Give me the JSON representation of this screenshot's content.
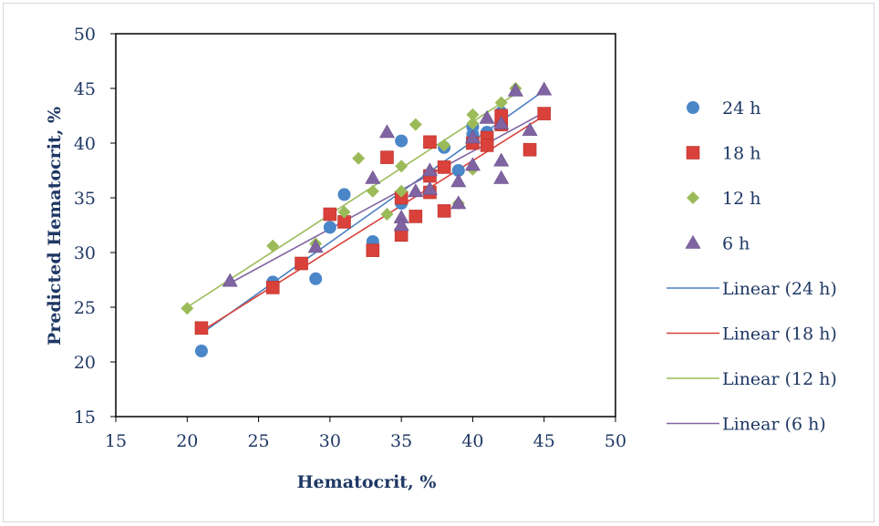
{
  "chart_data": {
    "type": "scatter",
    "xlabel": "Hematocrit, %",
    "ylabel": "Predicted Hematocrit, %",
    "xlim": [
      15,
      50
    ],
    "ylim": [
      15,
      50
    ],
    "xticks": [
      15,
      20,
      25,
      30,
      35,
      40,
      45,
      50
    ],
    "yticks": [
      15,
      20,
      25,
      30,
      35,
      40,
      45,
      50
    ],
    "grid": false,
    "legend_position": "right",
    "series": [
      {
        "name": "24 h",
        "marker": "circle",
        "color": "#4a86c8",
        "points": [
          [
            21,
            21
          ],
          [
            26,
            27.3
          ],
          [
            29,
            27.6
          ],
          [
            30,
            32.3
          ],
          [
            31,
            35.3
          ],
          [
            33,
            31
          ],
          [
            35,
            40.2
          ],
          [
            35,
            34.5
          ],
          [
            38,
            39.6
          ],
          [
            39,
            37.5
          ],
          [
            40,
            41.5
          ],
          [
            40,
            40.8
          ],
          [
            41,
            41
          ],
          [
            42,
            42.8
          ]
        ]
      },
      {
        "name": "18 h",
        "marker": "square",
        "color": "#d9413a",
        "points": [
          [
            21,
            23.1
          ],
          [
            26,
            26.8
          ],
          [
            28,
            29
          ],
          [
            30,
            33.5
          ],
          [
            31,
            32.8
          ],
          [
            33,
            30.2
          ],
          [
            34,
            38.7
          ],
          [
            35,
            31.6
          ],
          [
            35,
            35
          ],
          [
            36,
            33.3
          ],
          [
            37,
            40.1
          ],
          [
            37,
            37
          ],
          [
            37,
            35.5
          ],
          [
            38,
            33.8
          ],
          [
            38,
            37.8
          ],
          [
            40,
            40
          ],
          [
            41,
            40.5
          ],
          [
            41,
            39.8
          ],
          [
            42,
            41.7
          ],
          [
            42,
            42.5
          ],
          [
            44,
            39.4
          ],
          [
            45,
            42.7
          ]
        ]
      },
      {
        "name": "12 h",
        "marker": "diamond",
        "color": "#9bbb59",
        "points": [
          [
            20,
            24.9
          ],
          [
            26,
            30.6
          ],
          [
            29,
            30.8
          ],
          [
            31,
            33.7
          ],
          [
            32,
            38.6
          ],
          [
            33,
            35.6
          ],
          [
            34,
            33.5
          ],
          [
            35,
            37.9
          ],
          [
            35,
            35.6
          ],
          [
            36,
            41.7
          ],
          [
            38,
            39.8
          ],
          [
            39,
            34.5
          ],
          [
            40,
            42.6
          ],
          [
            40,
            37.6
          ],
          [
            40,
            41.8
          ],
          [
            42,
            43.7
          ],
          [
            43,
            45
          ]
        ]
      },
      {
        "name": "6 h",
        "marker": "triangle",
        "color": "#8064a2",
        "points": [
          [
            23,
            27.4
          ],
          [
            29,
            30.5
          ],
          [
            33,
            36.8
          ],
          [
            34,
            41
          ],
          [
            35,
            33.2
          ],
          [
            35,
            32.5
          ],
          [
            36,
            35.6
          ],
          [
            37,
            35.8
          ],
          [
            37,
            37.5
          ],
          [
            39,
            36.5
          ],
          [
            39,
            34.5
          ],
          [
            40,
            40.5
          ],
          [
            40,
            38
          ],
          [
            41,
            42.3
          ],
          [
            42,
            41.8
          ],
          [
            42,
            38.4
          ],
          [
            42,
            36.8
          ],
          [
            43,
            44.8
          ],
          [
            44,
            41.2
          ],
          [
            45,
            44.9
          ]
        ]
      }
    ],
    "trendlines": [
      {
        "name": "Linear (24 h)",
        "color": "#4a7fbf",
        "x": [
          21,
          45
        ],
        "y": [
          22.6,
          44.8
        ]
      },
      {
        "name": "Linear (18 h)",
        "color": "#d9413a",
        "x": [
          21,
          45
        ],
        "y": [
          22.8,
          42.5
        ]
      },
      {
        "name": "Linear (12 h)",
        "color": "#9bbb59",
        "x": [
          20,
          43
        ],
        "y": [
          25.0,
          44.5
        ]
      },
      {
        "name": "Linear (6 h)",
        "color": "#8064a2",
        "x": [
          23,
          45
        ],
        "y": [
          27.2,
          42.8
        ]
      }
    ]
  }
}
